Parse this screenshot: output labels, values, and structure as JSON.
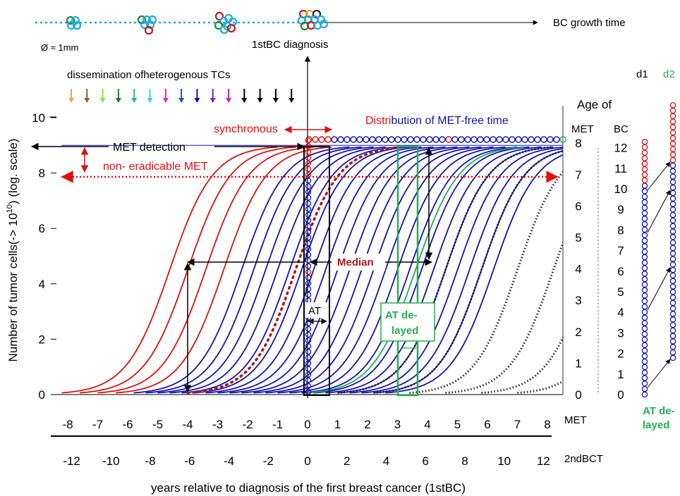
{
  "chart_data": {
    "type": "line",
    "timeline": {
      "label": "BC growth time",
      "size_label": "Ø ≈ 1mm",
      "diagnosis_label": "1stBC diagnosis"
    },
    "title_line": {
      "part1": "Distri",
      "part2": "bution of MET-free time"
    },
    "dissemination_label": "dissemination ofheterogenous TCs",
    "dissemination_arrow_colors": [
      "#f4a23c",
      "#8b5a2b",
      "#7ee84a",
      "#1f7a1f",
      "#18b8a0",
      "#3fd2d8",
      "#e020d8",
      "#1e4fe0",
      "#1010c8",
      "#7a20d8",
      "#c420d8",
      "#000000",
      "#000000",
      "#000000",
      "#000000"
    ],
    "annotations": {
      "synchronous": "synchronous",
      "met_detection": "MET detection",
      "non_eradicable": "non- eradicable MET",
      "median": "Median",
      "at": "AT",
      "at_delayed_1": "AT de-",
      "at_delayed_2": "layed",
      "at_delayed_right_1": "AT de-",
      "at_delayed_right_2": "layed"
    },
    "y_axis": {
      "label": "Number of tumor cells(-> 10",
      "label_sup": "10",
      "label_tail": ") (log. scale)",
      "ticks": [
        "0",
        "2",
        "4",
        "6",
        "8",
        "10"
      ],
      "range": [
        0,
        10
      ]
    },
    "x_axis_met": {
      "label": "MET",
      "ticks": [
        "-8",
        "-7",
        "-6",
        "-5",
        "-4",
        "-3",
        "-2",
        "-1",
        "0",
        "1",
        "2",
        "3",
        "4",
        "5",
        "6",
        "7",
        "8"
      ],
      "range": [
        -8,
        8
      ]
    },
    "x_axis_2ndbct": {
      "label": "2ndBCT",
      "ticks": [
        "-12",
        "-10",
        "-8",
        "-6",
        "-4",
        "-2",
        "0",
        "2",
        "4",
        "6",
        "8",
        "10",
        "12"
      ],
      "range": [
        -12,
        12
      ]
    },
    "x_caption": "years relative to diagnosis of the first breast cancer (1stBC)",
    "right_axes": {
      "age_of": "Age of",
      "met_header": "MET",
      "bc_header": "BC",
      "met_ticks": [
        "0",
        "1",
        "2",
        "3",
        "4",
        "5",
        "6",
        "7",
        "8"
      ],
      "bc_ticks": [
        "0",
        "1",
        "2",
        "3",
        "4",
        "5",
        "6",
        "7",
        "8",
        "9",
        "10",
        "11",
        "12"
      ],
      "d1": "d1",
      "d2": "d2"
    },
    "curves": {
      "red_start_years": [
        -8.2,
        -7.6,
        -7.0,
        -6.4
      ],
      "blue_start_years": [
        -5.8,
        -5.4,
        -5.0,
        -4.6,
        -4.2,
        -3.8,
        -3.4,
        -3.0,
        -2.6,
        -2.2,
        -1.8,
        -1.4,
        -1.0,
        -0.6,
        -0.2,
        0.2,
        0.6,
        1.0,
        1.4,
        1.8,
        2.2,
        2.6
      ],
      "median_start_year": -4.0,
      "green_start_year": 0.0,
      "dotted_start_years": [
        1.0,
        2.2,
        3.4,
        4.6,
        5.8,
        7.0
      ],
      "detection_level": 9,
      "non_eradicable_level": 7.9
    },
    "colors": {
      "red": "#e01010",
      "blue": "#1414b4",
      "green": "#22b14c",
      "dark_red": "#b01818",
      "cyan": "#22aadd"
    }
  }
}
